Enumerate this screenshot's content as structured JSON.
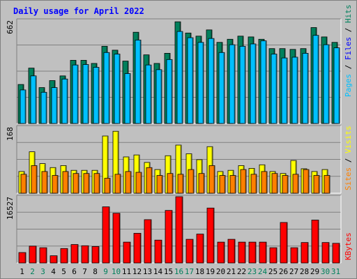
{
  "title": "Daily usage for April 2022",
  "colors": {
    "hits": "#00805c",
    "files": "#00c0ff",
    "pages": "#00e0ff",
    "visits": "#ffff00",
    "sites": "#ff8000",
    "kbytes": "#ff0000",
    "weekday_label": "#000000",
    "weekend_label": "#00805c",
    "legend_pages": "#00c0ff",
    "legend_files": "#0000ff",
    "legend_hits": "#00805c",
    "legend_sites": "#ff8000",
    "legend_visits": "#ffff00",
    "legend_kbytes": "#ff0000",
    "legend_separator": "#000000"
  },
  "panels": {
    "top": {
      "max_label": "662",
      "legend": {
        "a": "Pages",
        "sep1": " / ",
        "b": "Files",
        "sep2": " / ",
        "c": "Hits"
      }
    },
    "middle": {
      "max_label": "168",
      "legend": {
        "a": "Sites",
        "sep1": " / ",
        "b": "Visits"
      }
    },
    "bottom": {
      "max_label": "16527",
      "legend": {
        "a": "KBytes"
      }
    }
  },
  "chart_data": {
    "type": "bar",
    "title": "Daily usage for April 2022",
    "categories": [
      "1",
      "2",
      "3",
      "4",
      "5",
      "6",
      "7",
      "8",
      "9",
      "10",
      "11",
      "12",
      "13",
      "14",
      "15",
      "16",
      "17",
      "18",
      "19",
      "20",
      "21",
      "22",
      "23",
      "24",
      "25",
      "26",
      "27",
      "28",
      "29",
      "30",
      "31"
    ],
    "weekend_days": [
      "2",
      "3",
      "9",
      "10",
      "16",
      "17",
      "23",
      "24",
      "30",
      "31"
    ],
    "panels": [
      {
        "name": "top",
        "ylim": [
          0,
          662
        ],
        "series": [
          {
            "name": "Hits",
            "values": [
              250,
              355,
              230,
              275,
              305,
              405,
              405,
              385,
              495,
              470,
              400,
              585,
              440,
              385,
              450,
              652,
              580,
              560,
              600,
              520,
              540,
              560,
              555,
              540,
              480,
              480,
              475,
              480,
              615,
              555,
              520
            ]
          },
          {
            "name": "Files",
            "values": [
              215,
              305,
              200,
              230,
              285,
              375,
              378,
              360,
              455,
              445,
              320,
              535,
              375,
              345,
              410,
              590,
              550,
              520,
              545,
              455,
              505,
              495,
              510,
              530,
              445,
              420,
              425,
              450,
              565,
              505,
              485
            ]
          },
          {
            "name": "Pages",
            "values": [
              0,
              0,
              0,
              0,
              0,
              0,
              0,
              0,
              0,
              0,
              0,
              0,
              0,
              0,
              0,
              0,
              0,
              0,
              0,
              0,
              0,
              0,
              0,
              0,
              0,
              0,
              0,
              0,
              0,
              0,
              0
            ]
          }
        ]
      },
      {
        "name": "middle",
        "ylim": [
          0,
          168
        ],
        "series": [
          {
            "name": "Visits",
            "values": [
              55,
              105,
              75,
              65,
              70,
              58,
              58,
              58,
              145,
              157,
              92,
              97,
              78,
              60,
              95,
              122,
              100,
              85,
              118,
              55,
              58,
              70,
              63,
              72,
              55,
              50,
              83,
              62,
              55,
              60,
              0
            ]
          },
          {
            "name": "Sites",
            "values": [
              48,
              70,
              55,
              45,
              55,
              50,
              50,
              50,
              38,
              48,
              55,
              53,
              65,
              45,
              50,
              48,
              60,
              50,
              70,
              45,
              45,
              60,
              48,
              55,
              50,
              45,
              48,
              60,
              45,
              45,
              0
            ]
          }
        ]
      },
      {
        "name": "bottom",
        "ylim": [
          0,
          16527
        ],
        "series": [
          {
            "name": "KBytes",
            "values": [
              2600,
              4200,
              3800,
              1800,
              3600,
              4600,
              4300,
              4100,
              14000,
              12400,
              5200,
              7400,
              10800,
              5700,
              13100,
              16527,
              5900,
              7200,
              13700,
              5200,
              5900,
              5200,
              5200,
              5200,
              3800,
              10100,
              3800,
              5100,
              10700,
              5100,
              4900
            ]
          }
        ]
      }
    ]
  }
}
